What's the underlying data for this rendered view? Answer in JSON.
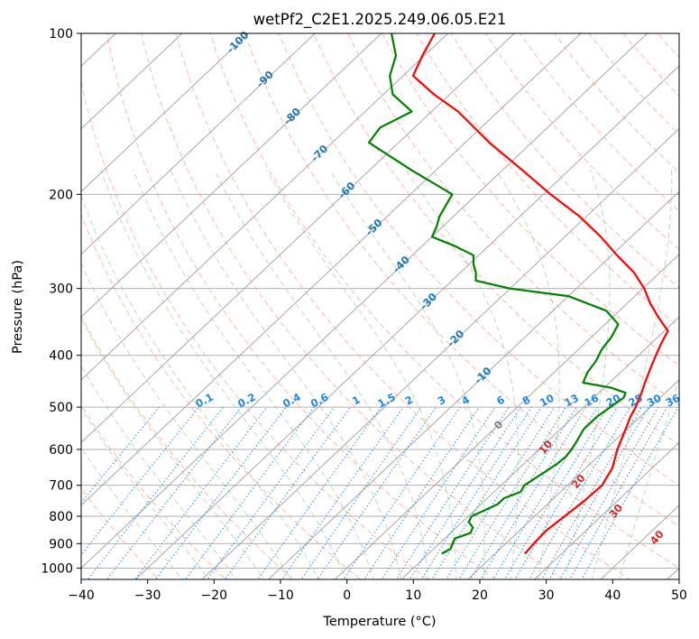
{
  "chart_data": {
    "type": "line",
    "subtype": "skew-t log-p",
    "title": "wetPf2_C2E1.2025.249.06.05.E21",
    "xlabel": "Temperature (°C)",
    "ylabel": "Pressure (hPa)",
    "xlim": [
      -40,
      50
    ],
    "ylim": [
      1050,
      100
    ],
    "skew": 37,
    "x_ticks": [
      "−40",
      "−30",
      "−20",
      "−10",
      "0",
      "10",
      "20",
      "30",
      "40",
      "50"
    ],
    "x_tick_values": [
      -40,
      -30,
      -20,
      -10,
      0,
      10,
      20,
      30,
      40,
      50
    ],
    "y_ticks": [
      "100",
      "200",
      "300",
      "400",
      "500",
      "600",
      "700",
      "800",
      "900",
      "1000"
    ],
    "y_tick_values": [
      100,
      200,
      300,
      400,
      500,
      600,
      700,
      800,
      900,
      1000
    ],
    "grid": true,
    "colors": {
      "temperature": "#ff0000",
      "dewpoint": "#008000",
      "isotherm": "#9e9e9e",
      "isobar": "#b0b0b0",
      "dry_adiabat": "#fa8b6e",
      "moist_adiabat": "#7cc47c",
      "mixing_ratio": "#1e88e5",
      "isotherm_label": "#1f77b4",
      "moist_label": "#d62728",
      "zero_label": "#7f7f7f",
      "curve_grey": "#d2b48c"
    },
    "series": [
      {
        "name": "Temperature",
        "color": "#ff0000",
        "pressure": [
          940,
          900,
          850,
          800,
          750,
          700,
          650,
          600,
          550,
          520,
          500,
          470,
          450,
          420,
          400,
          380,
          360,
          340,
          320,
          300,
          280,
          260,
          240,
          220,
          200,
          180,
          160,
          140,
          130,
          120,
          110,
          100
        ],
        "temp": [
          24.5,
          24.2,
          24.0,
          24.5,
          25.0,
          25.2,
          24.0,
          21.8,
          19.8,
          18.5,
          17.8,
          16.4,
          15.3,
          13.7,
          12.6,
          11.5,
          10.5,
          7.0,
          3.5,
          0.2,
          -3.9,
          -9.2,
          -14.6,
          -21.0,
          -28.9,
          -37.1,
          -46.4,
          -56.0,
          -62.4,
          -68.5,
          -70.3,
          -72.0
        ]
      },
      {
        "name": "Dewpoint",
        "color": "#008000",
        "pressure": [
          940,
          920,
          900,
          880,
          860,
          840,
          820,
          800,
          780,
          760,
          740,
          720,
          700,
          680,
          660,
          640,
          620,
          600,
          580,
          550,
          520,
          500,
          480,
          470,
          460,
          450,
          430,
          410,
          390,
          370,
          350,
          330,
          310,
          300,
          290,
          280,
          270,
          260,
          250,
          240,
          230,
          220,
          200,
          180,
          160,
          150,
          140,
          130,
          120,
          110,
          100
        ],
        "temp": [
          12.0,
          12.5,
          12.0,
          11.5,
          13.0,
          12.5,
          11.0,
          10.5,
          11.5,
          12.5,
          12.5,
          14.0,
          13.5,
          14.0,
          14.5,
          15.0,
          15.2,
          14.9,
          14.4,
          13.5,
          13.5,
          14.0,
          14.5,
          14.0,
          11.0,
          6.0,
          5.0,
          4.5,
          3.5,
          3.0,
          2.0,
          -2.0,
          -10.0,
          -20.0,
          -26.4,
          -27.7,
          -29.4,
          -30.8,
          -35.0,
          -40.0,
          -40.9,
          -42.1,
          -43.7,
          -53.8,
          -64.5,
          -65.2,
          -63.0,
          -68.6,
          -72.0,
          -74.3,
          -78.5
        ]
      }
    ],
    "isotherm_labels": [
      "-100",
      "-90",
      "-80",
      "-70",
      "-60",
      "-50",
      "-40",
      "-30",
      "-20",
      "-10"
    ],
    "isotherm_label_values": [
      -100,
      -90,
      -80,
      -70,
      -60,
      -50,
      -40,
      -30,
      -20,
      -10
    ],
    "zero_label": "0",
    "zero_label_temp": 0,
    "zero_label_pressure": 540,
    "mixing_ratio_labels": [
      "0.1",
      "0.2",
      "0.4",
      "0.6",
      "1",
      "1.5",
      "2",
      "3",
      "4",
      "6",
      "8",
      "10",
      "13",
      "16",
      "20",
      "25",
      "30",
      "36"
    ],
    "mixing_ratio_values": [
      0.1,
      0.2,
      0.4,
      0.6,
      1,
      1.5,
      2,
      3,
      4,
      6,
      8,
      10,
      13,
      16,
      20,
      25,
      30,
      36
    ],
    "moist_adiabat_labels": [
      "10",
      "20",
      "30",
      "40"
    ],
    "moist_adiabat_values": [
      10,
      20,
      30,
      40
    ]
  }
}
